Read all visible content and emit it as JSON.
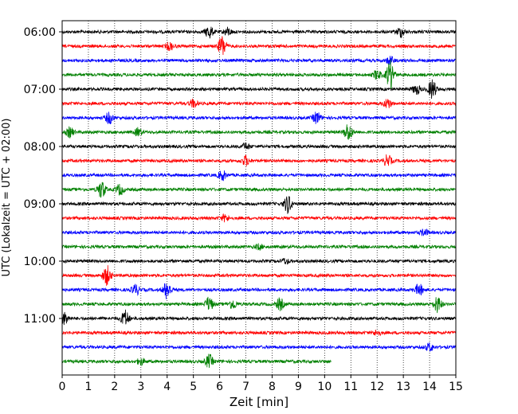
{
  "chart_data": {
    "type": "line",
    "title": "",
    "xlabel": "Zeit  [min]",
    "ylabel": "UTC (Lokalzeit = UTC + 02:00)",
    "xlim": [
      0,
      15
    ],
    "x_ticks": [
      "0",
      "1",
      "2",
      "3",
      "4",
      "5",
      "6",
      "7",
      "8",
      "9",
      "10",
      "11",
      "12",
      "13",
      "14",
      "15"
    ],
    "y_tick_labels": [
      "06:00",
      "07:00",
      "08:00",
      "09:00",
      "10:00",
      "11:00"
    ],
    "y_tick_trace_index": [
      0,
      4,
      8,
      12,
      16,
      20
    ],
    "grid": "vertical dotted",
    "trace_colors": [
      "#000000",
      "#ff0000",
      "#0000ff",
      "#008000"
    ],
    "trace_interval_minutes": 15,
    "traces": [
      {
        "start": "06:00",
        "end_minute": 15,
        "events": [
          [
            5.6,
            2.0
          ],
          [
            12.9,
            1.5
          ],
          [
            6.3,
            1.2
          ]
        ]
      },
      {
        "start": "06:15",
        "end_minute": 15,
        "events": [
          [
            6.1,
            3.2
          ],
          [
            4.1,
            1.2
          ]
        ]
      },
      {
        "start": "06:30",
        "end_minute": 15,
        "events": [
          [
            12.5,
            1.2
          ]
        ]
      },
      {
        "start": "06:45",
        "end_minute": 15,
        "events": [
          [
            12.5,
            4.5
          ],
          [
            12.0,
            1.5
          ]
        ]
      },
      {
        "start": "07:00",
        "end_minute": 15,
        "events": [
          [
            14.1,
            3.0
          ],
          [
            13.5,
            1.5
          ]
        ]
      },
      {
        "start": "07:15",
        "end_minute": 15,
        "events": [
          [
            12.4,
            1.5
          ],
          [
            5.0,
            1.2
          ]
        ]
      },
      {
        "start": "07:30",
        "end_minute": 15,
        "events": [
          [
            1.8,
            1.8
          ],
          [
            9.7,
            1.8
          ]
        ]
      },
      {
        "start": "07:45",
        "end_minute": 15,
        "events": [
          [
            10.9,
            2.8
          ],
          [
            0.3,
            1.5
          ],
          [
            2.9,
            1.2
          ]
        ]
      },
      {
        "start": "08:00",
        "end_minute": 15,
        "events": [
          [
            7.0,
            1.0
          ]
        ]
      },
      {
        "start": "08:15",
        "end_minute": 15,
        "events": [
          [
            12.4,
            1.8
          ],
          [
            7.0,
            1.5
          ]
        ]
      },
      {
        "start": "08:30",
        "end_minute": 15,
        "events": [
          [
            6.1,
            1.5
          ]
        ]
      },
      {
        "start": "08:45",
        "end_minute": 15,
        "events": [
          [
            1.5,
            2.8
          ],
          [
            2.2,
            1.6
          ]
        ]
      },
      {
        "start": "09:00",
        "end_minute": 15,
        "events": [
          [
            8.6,
            2.8
          ]
        ]
      },
      {
        "start": "09:15",
        "end_minute": 15,
        "events": [
          [
            6.2,
            1.0
          ]
        ]
      },
      {
        "start": "09:30",
        "end_minute": 15,
        "events": [
          [
            13.8,
            1.0
          ]
        ]
      },
      {
        "start": "09:45",
        "end_minute": 15,
        "events": [
          [
            7.5,
            0.8
          ]
        ]
      },
      {
        "start": "10:00",
        "end_minute": 15,
        "events": [
          [
            8.5,
            0.8
          ]
        ]
      },
      {
        "start": "10:15",
        "end_minute": 15,
        "events": [
          [
            1.7,
            3.0
          ]
        ]
      },
      {
        "start": "10:30",
        "end_minute": 15,
        "events": [
          [
            4.0,
            2.8
          ],
          [
            13.6,
            1.8
          ],
          [
            2.8,
            1.6
          ]
        ]
      },
      {
        "start": "10:45",
        "end_minute": 15,
        "events": [
          [
            14.3,
            2.5
          ],
          [
            5.6,
            2.2
          ],
          [
            8.3,
            1.8
          ],
          [
            6.5,
            1.5
          ]
        ]
      },
      {
        "start": "11:00",
        "end_minute": 15,
        "events": [
          [
            2.4,
            2.5
          ],
          [
            0.1,
            1.8
          ]
        ]
      },
      {
        "start": "11:15",
        "end_minute": 15,
        "events": [
          [
            12.0,
            0.8
          ]
        ]
      },
      {
        "start": "11:30",
        "end_minute": 15,
        "events": [
          [
            14.0,
            1.2
          ]
        ]
      },
      {
        "start": "11:45",
        "end_minute": 10.25,
        "events": [
          [
            5.6,
            2.0
          ],
          [
            3.0,
            1.0
          ]
        ]
      }
    ]
  }
}
